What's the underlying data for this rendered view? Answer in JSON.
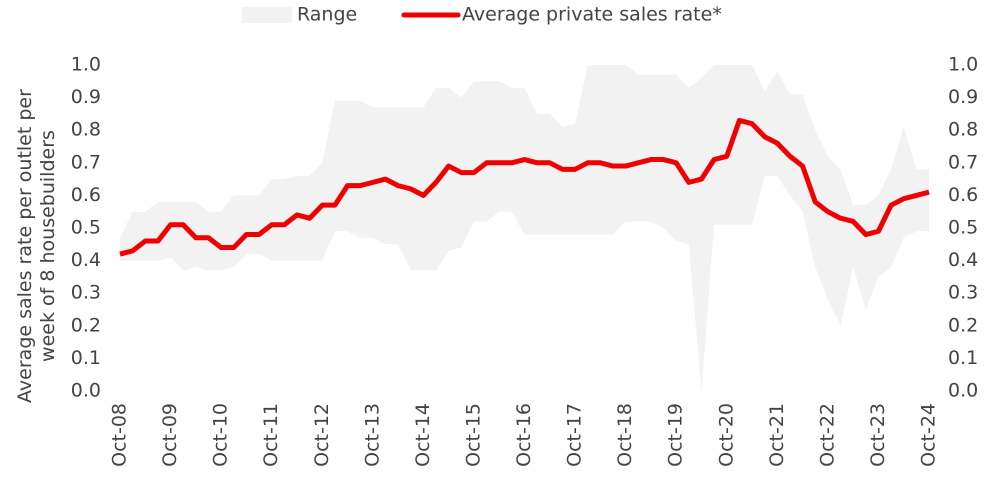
{
  "chart_data": {
    "type": "line",
    "ylabel": "Average sales rate per outlet per week of 8 housebuilders",
    "categories": [
      "Oct-08",
      null,
      null,
      null,
      "Oct-09",
      null,
      null,
      null,
      "Oct-10",
      null,
      null,
      null,
      "Oct-11",
      null,
      null,
      null,
      "Oct-12",
      null,
      null,
      null,
      "Oct-13",
      null,
      null,
      null,
      "Oct-14",
      null,
      null,
      null,
      "Oct-15",
      null,
      null,
      null,
      "Oct-16",
      null,
      null,
      null,
      "Oct-17",
      null,
      null,
      null,
      "Oct-18",
      null,
      null,
      null,
      "Oct-19",
      null,
      null,
      null,
      "Oct-20",
      null,
      null,
      null,
      "Oct-21",
      null,
      null,
      null,
      "Oct-22",
      null,
      null,
      null,
      "Oct-23",
      null,
      null,
      null,
      "Oct-24"
    ],
    "range": {
      "name": "Range",
      "color": "#f2f2f2",
      "high": [
        0.47,
        0.55,
        0.55,
        0.58,
        0.58,
        0.58,
        0.58,
        0.55,
        0.55,
        0.6,
        0.6,
        0.6,
        0.65,
        0.65,
        0.66,
        0.66,
        0.7,
        0.89,
        0.89,
        0.89,
        0.87,
        0.87,
        0.87,
        0.87,
        0.87,
        0.93,
        0.93,
        0.9,
        0.95,
        0.95,
        0.95,
        0.93,
        0.93,
        0.85,
        0.85,
        0.81,
        0.82,
        1.0,
        1.0,
        1.0,
        1.0,
        0.97,
        0.97,
        0.97,
        0.97,
        0.93,
        0.96,
        1.0,
        1.0,
        1.0,
        1.0,
        0.92,
        0.98,
        0.91,
        0.91,
        0.8,
        0.72,
        0.68,
        0.57,
        0.57,
        0.6,
        0.68,
        0.81,
        0.68,
        0.68
      ],
      "low": [
        0.4,
        0.4,
        0.4,
        0.4,
        0.41,
        0.37,
        0.38,
        0.37,
        0.37,
        0.38,
        0.42,
        0.42,
        0.4,
        0.4,
        0.4,
        0.4,
        0.4,
        0.49,
        0.49,
        0.47,
        0.47,
        0.45,
        0.45,
        0.37,
        0.37,
        0.37,
        0.43,
        0.44,
        0.52,
        0.52,
        0.55,
        0.55,
        0.48,
        0.48,
        0.48,
        0.48,
        0.48,
        0.48,
        0.48,
        0.48,
        0.52,
        0.52,
        0.52,
        0.5,
        0.46,
        0.45,
        0.0,
        0.51,
        0.51,
        0.51,
        0.51,
        0.66,
        0.66,
        0.6,
        0.55,
        0.38,
        0.28,
        0.2,
        0.38,
        0.25,
        0.35,
        0.38,
        0.47,
        0.49,
        0.49
      ]
    },
    "series": [
      {
        "name": "Average private sales rate*",
        "color": "#f00000",
        "values": [
          0.42,
          0.43,
          0.46,
          0.46,
          0.51,
          0.51,
          0.47,
          0.47,
          0.44,
          0.44,
          0.48,
          0.48,
          0.51,
          0.51,
          0.54,
          0.53,
          0.57,
          0.57,
          0.63,
          0.63,
          0.64,
          0.65,
          0.63,
          0.62,
          0.6,
          0.64,
          0.69,
          0.67,
          0.67,
          0.7,
          0.7,
          0.7,
          0.71,
          0.7,
          0.7,
          0.68,
          0.68,
          0.7,
          0.7,
          0.69,
          0.69,
          0.7,
          0.71,
          0.71,
          0.7,
          0.64,
          0.65,
          0.71,
          0.72,
          0.83,
          0.82,
          0.78,
          0.76,
          0.72,
          0.69,
          0.58,
          0.55,
          0.53,
          0.52,
          0.48,
          0.49,
          0.57,
          0.59,
          0.6,
          0.61
        ]
      }
    ],
    "ylim": [
      0,
      1
    ],
    "yticks": [
      {
        "value": 0,
        "label": "0.0"
      },
      0.1,
      0.2,
      0.3,
      0.4,
      0.5,
      0.6,
      0.7,
      0.8,
      0.9,
      {
        "value": 1,
        "label": "1.0"
      }
    ],
    "y2lim": [
      0,
      1
    ],
    "y2ticks": [
      {
        "value": 0,
        "label": "0.0"
      },
      0.1,
      0.2,
      0.3,
      0.4,
      0.5,
      0.6,
      0.7,
      0.8,
      0.9,
      {
        "value": 1,
        "label": "1.0"
      }
    ],
    "legend": "top"
  }
}
